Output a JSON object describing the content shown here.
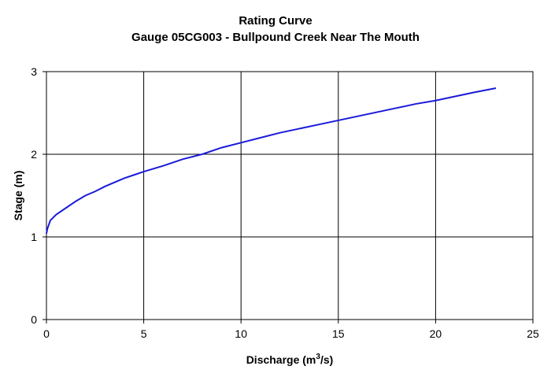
{
  "chart_data": {
    "type": "line",
    "title": "Rating Curve",
    "subtitle": "Gauge 05CG003 - Bullpound Creek Near The Mouth",
    "xlabel": "Discharge (m",
    "xlabel_sup": "3",
    "xlabel_suffix": "/s)",
    "ylabel": "Stage (m)",
    "xlim": [
      0,
      25
    ],
    "ylim": [
      0,
      3
    ],
    "xticks": [
      "0",
      "5",
      "10",
      "15",
      "20",
      "25"
    ],
    "yticks": [
      "0",
      "1",
      "2",
      "3"
    ],
    "grid": true,
    "line_color": "#1a1adb",
    "series": [
      {
        "x": [
          0,
          0.05,
          0.2,
          0.5,
          1,
          1.5,
          2,
          2.5,
          3,
          3.5,
          4,
          4.5,
          5,
          6,
          7,
          8,
          9,
          10,
          11,
          12,
          13,
          14,
          15,
          16,
          17,
          18,
          19,
          20,
          21,
          22,
          23.1
        ],
        "y": [
          1.04,
          1.1,
          1.2,
          1.27,
          1.35,
          1.43,
          1.5,
          1.55,
          1.61,
          1.66,
          1.71,
          1.75,
          1.79,
          1.86,
          1.94,
          2.0,
          2.08,
          2.14,
          2.2,
          2.26,
          2.31,
          2.36,
          2.41,
          2.46,
          2.51,
          2.56,
          2.61,
          2.65,
          2.7,
          2.75,
          2.8
        ]
      }
    ]
  }
}
